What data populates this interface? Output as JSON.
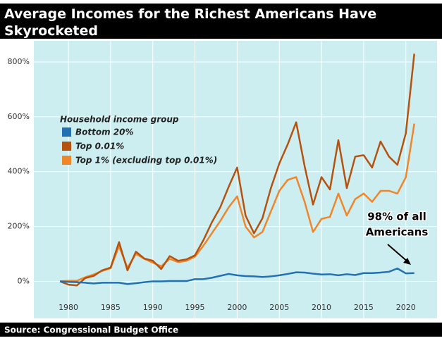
{
  "chart_data": {
    "type": "line",
    "title": "Average Incomes for the Richest Americans Have Skyrocketed",
    "source": "Source: Congressional Budget Office",
    "legend_title": "Household income group",
    "annotation": [
      "98% of all",
      "Americans"
    ],
    "x": [
      1979,
      1980,
      1981,
      1982,
      1983,
      1984,
      1985,
      1986,
      1987,
      1988,
      1989,
      1990,
      1991,
      1992,
      1993,
      1994,
      1995,
      1996,
      1997,
      1998,
      1999,
      2000,
      2001,
      2002,
      2003,
      2004,
      2005,
      2006,
      2007,
      2008,
      2009,
      2010,
      2011,
      2012,
      2013,
      2014,
      2015,
      2016,
      2017,
      2018,
      2019,
      2020,
      2021
    ],
    "series": [
      {
        "name": "Bottom 20%",
        "color": "#2271b3",
        "values": [
          0,
          -2,
          -3,
          -5,
          -8,
          -5,
          -5,
          -5,
          -10,
          -7,
          -3,
          0,
          0,
          1,
          1,
          1,
          8,
          8,
          13,
          20,
          27,
          22,
          19,
          18,
          16,
          18,
          22,
          27,
          33,
          32,
          28,
          25,
          26,
          22,
          26,
          23,
          30,
          30,
          32,
          35,
          47,
          29,
          30
        ]
      },
      {
        "name": "Top 0.01%",
        "color": "#b5520f",
        "values": [
          0,
          -12,
          -15,
          12,
          20,
          40,
          50,
          143,
          40,
          108,
          83,
          75,
          45,
          92,
          75,
          80,
          95,
          150,
          215,
          270,
          345,
          415,
          240,
          175,
          230,
          340,
          430,
          500,
          580,
          420,
          280,
          380,
          335,
          515,
          340,
          455,
          460,
          415,
          510,
          455,
          425,
          540,
          830
        ]
      },
      {
        "name": "Top 1% (excluding top 0.01%)",
        "color": "#f0862a",
        "values": [
          0,
          2,
          2,
          15,
          25,
          38,
          48,
          128,
          50,
          100,
          82,
          68,
          55,
          82,
          70,
          75,
          90,
          130,
          175,
          220,
          270,
          310,
          200,
          160,
          180,
          255,
          330,
          370,
          380,
          290,
          180,
          228,
          235,
          320,
          240,
          300,
          320,
          290,
          330,
          330,
          320,
          380,
          575
        ]
      }
    ],
    "xlim": [
      1975.9,
      2023.7
    ],
    "xticks": [
      1980,
      1985,
      1990,
      1995,
      2000,
      2005,
      2010,
      2015,
      2020
    ],
    "ylim": [
      -135,
      877
    ],
    "yticks": [
      {
        "value": 0,
        "label": "0%"
      },
      {
        "value": 200,
        "label": "200%"
      },
      {
        "value": 400,
        "label": "400%"
      },
      {
        "value": 600,
        "label": "600%"
      },
      {
        "value": 800,
        "label": "800%"
      }
    ],
    "grid": true
  }
}
